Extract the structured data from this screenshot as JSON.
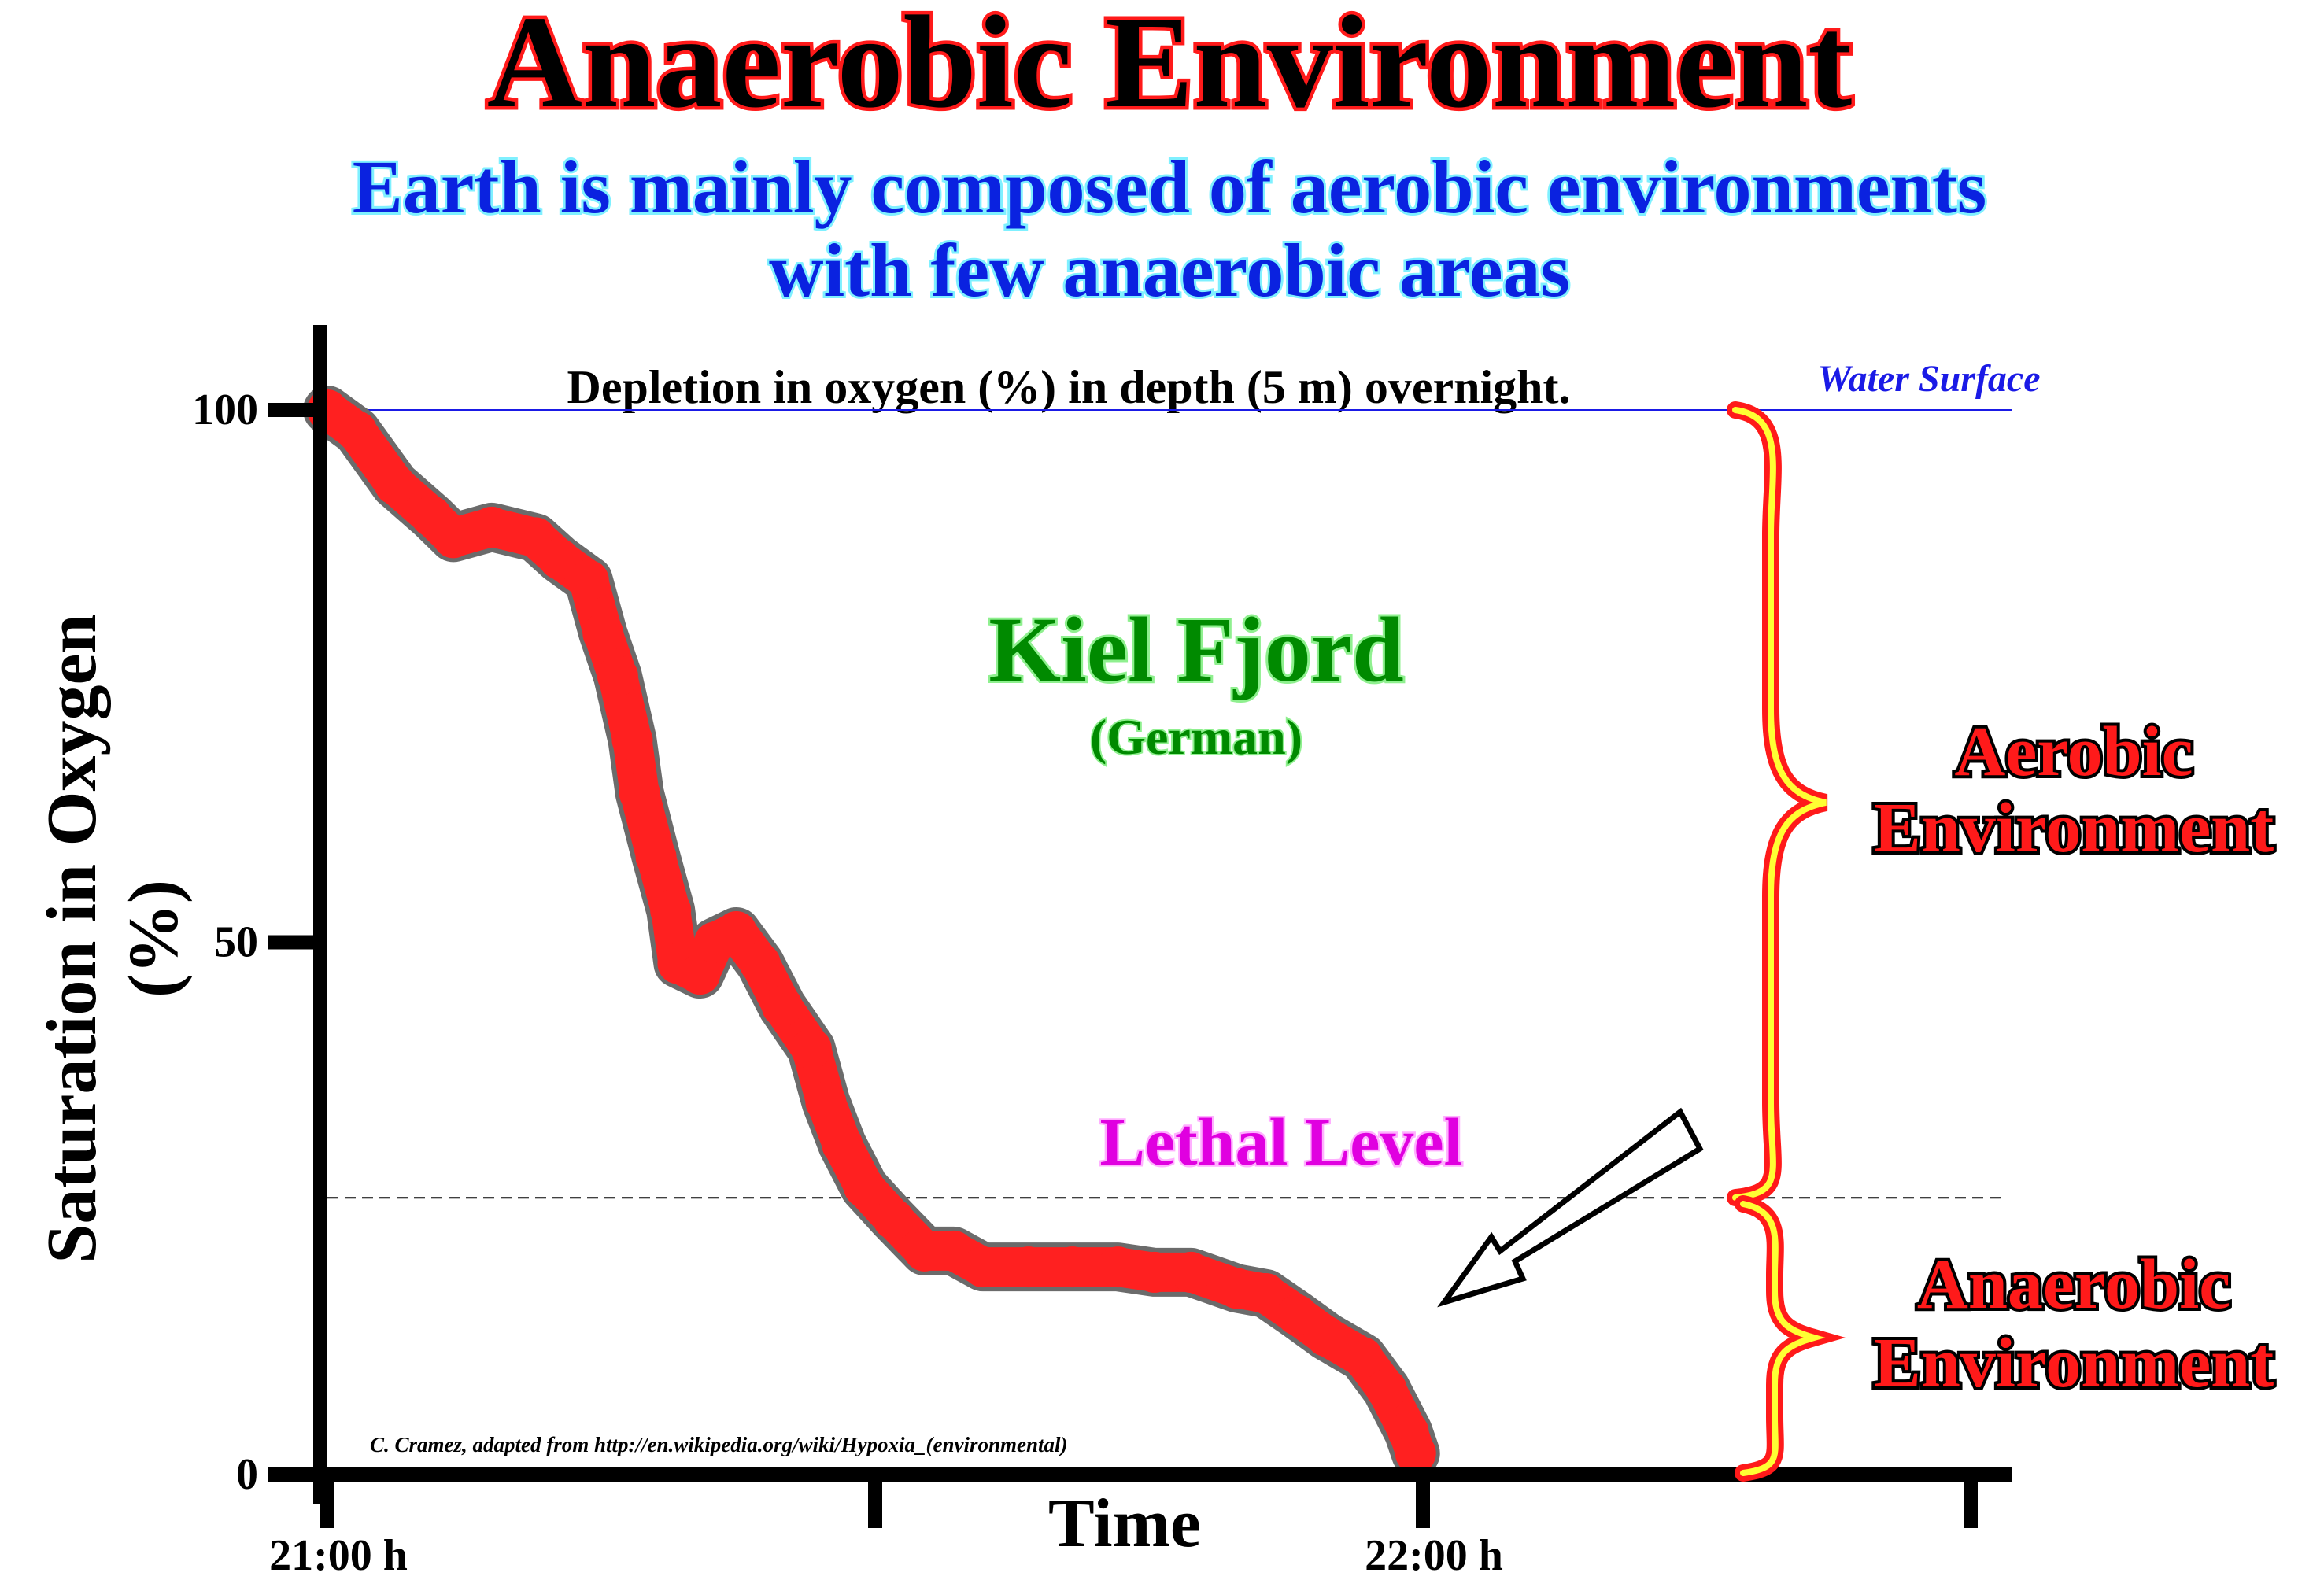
{
  "header": {
    "title": "Anaerobic Environment",
    "subtitle_line1": "Earth is mainly composed of aerobic environments",
    "subtitle_line2": "with few anaerobic areas"
  },
  "annotations": {
    "water_surface": "Water Surface",
    "location": "Kiel Fjord",
    "location_sub": "(German)",
    "lethal_level": "Lethal Level",
    "aerobic_line1": "Aerobic",
    "aerobic_line2": "Environment",
    "anaerobic_line1": "Anaerobic",
    "anaerobic_line2": "Environment",
    "credit": "C. Cramez, adapted from http://en.wikipedia.org/wiki/Hypoxia_(environmental)"
  },
  "colors": {
    "line": "#ff2020",
    "line_outline": "#6b6b6b",
    "water": "#1a1ae6",
    "brace": "#ff1a1a",
    "brace_fill": "#ffff33"
  },
  "chart_data": {
    "type": "line",
    "title": "Depletion in oxygen (%) in depth (5 m) overnight.",
    "xlabel": "Time",
    "ylabel": "Saturation in Oxygen",
    "ylabel2": "(%)",
    "x_unit": "minutes after 21:00",
    "xlim": [
      0,
      90
    ],
    "ylim": [
      0,
      100
    ],
    "y_ticks": [
      {
        "value": 100,
        "label": "100"
      },
      {
        "value": 50,
        "label": "50"
      },
      {
        "value": 0,
        "label": "0"
      }
    ],
    "x_ticks": [
      {
        "value": 0,
        "label": "21:00 h"
      },
      {
        "value": 30,
        "label": ""
      },
      {
        "value": 60,
        "label": "22:00 h"
      },
      {
        "value": 90,
        "label": ""
      }
    ],
    "water_surface_level": 100,
    "lethal_level": 26,
    "series": [
      {
        "name": "Oxygen saturation",
        "x": [
          0,
          1.6,
          3.7,
          5.7,
          6.9,
          9,
          11.4,
          12.7,
          14.3,
          15.1,
          15.9,
          16.7,
          17.1,
          18,
          18.8,
          19.2,
          20.4,
          21.2,
          22.4,
          23.7,
          24.9,
          26.5,
          27.3,
          28.2,
          29.4,
          31,
          32.7,
          34.3,
          35.9,
          38.4,
          40.8,
          43.3,
          45.3,
          47.3,
          49.8,
          51.4,
          53.1,
          54.7,
          56.7,
          58,
          59.2,
          59.6
        ],
        "y": [
          100,
          98,
          93,
          90,
          88,
          89,
          88,
          86,
          84,
          79,
          75,
          69,
          64,
          58,
          53,
          48,
          47,
          50,
          51,
          48,
          44,
          40,
          35,
          31,
          27,
          24,
          21,
          21,
          19.5,
          19.5,
          19.5,
          19.5,
          19,
          19,
          17.5,
          17,
          15,
          13,
          11,
          8,
          4,
          2
        ]
      }
    ]
  }
}
